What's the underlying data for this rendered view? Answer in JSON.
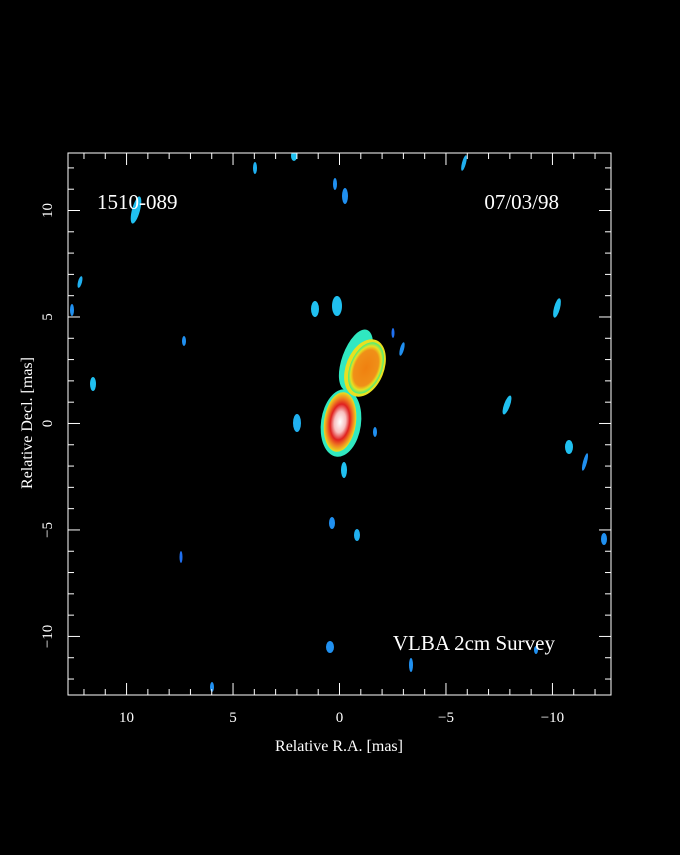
{
  "chart_data": {
    "type": "map",
    "source": "1510-089",
    "date": "07/03/98",
    "survey": "VLBA 2cm Survey",
    "x_label": "Relative R.A. [mas]",
    "y_label": "Relative Decl. [mas]",
    "xlim": [
      12.75,
      -12.75
    ],
    "ylim": [
      -12.75,
      12.7
    ],
    "xticks": [
      10,
      5,
      0,
      {
        "value": -5,
        "label": "−5"
      },
      {
        "value": -10,
        "label": "−10"
      }
    ],
    "yticks": [
      {
        "value": -10,
        "label": "−10"
      },
      {
        "value": -5,
        "label": "−5"
      },
      0,
      5,
      10
    ],
    "xminorticks": [
      12,
      11,
      9,
      8,
      7,
      6,
      4,
      3,
      2,
      1,
      -1,
      -2,
      -3,
      -4,
      -6,
      -7,
      -8,
      -9,
      -11,
      -12
    ],
    "yminorticks": [
      -12,
      -11,
      -9,
      -8,
      -7,
      -6,
      -4,
      -3,
      -2,
      -1,
      1,
      2,
      3,
      4,
      6,
      7,
      8,
      9,
      11,
      12
    ]
  }
}
